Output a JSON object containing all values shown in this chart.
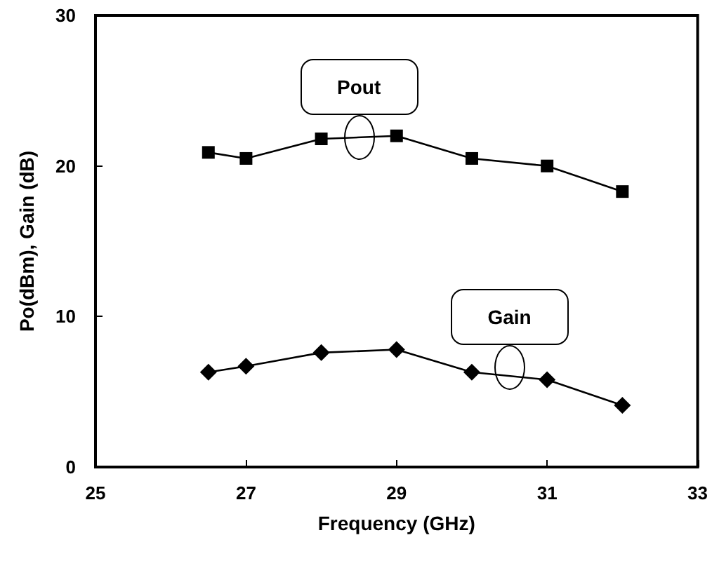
{
  "chart_data": {
    "type": "line",
    "xlabel": "Frequency (GHz)",
    "ylabel": "Po(dBm), Gain (dB)",
    "x": [
      26.5,
      27,
      28,
      29,
      30,
      31,
      32
    ],
    "series": [
      {
        "values": [
          20.9,
          20.5,
          21.8,
          22.0,
          20.5,
          20.0,
          18.3
        ],
        "color": "#000000",
        "marker": "square"
      },
      {
        "values": [
          6.3,
          6.7,
          7.6,
          7.8,
          6.3,
          5.8,
          4.1
        ],
        "color": "#000000",
        "marker": "diamond"
      }
    ],
    "annotations": [
      {
        "text": "Pout",
        "x": 28.5,
        "y": 21.9
      },
      {
        "text": "Gain",
        "x": 30.5,
        "y": 6.6
      }
    ],
    "xlim": [
      25,
      33
    ],
    "xticks": [
      25,
      27,
      29,
      31,
      33
    ],
    "ylim": [
      0,
      30
    ],
    "yticks": [
      0,
      10,
      20,
      30
    ],
    "grid": false,
    "line_style": "solid"
  }
}
